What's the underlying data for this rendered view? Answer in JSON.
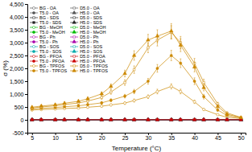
{
  "chart_data": {
    "type": "line",
    "x": [
      5,
      7,
      10,
      12,
      15,
      17,
      20,
      22,
      25,
      27,
      30,
      32,
      35,
      37,
      40,
      42,
      45,
      47,
      50
    ],
    "xlabel": "Temperature (°C)",
    "ylabel": "σ (%)",
    "xlim": [
      4,
      51
    ],
    "ylim": [
      -500,
      4500
    ],
    "xticks": [
      5,
      10,
      15,
      20,
      25,
      30,
      35,
      40,
      45,
      50
    ],
    "yticks": [
      -500,
      0,
      500,
      {
        "value": 1000,
        "label": "1,000"
      },
      {
        "value": 1500,
        "label": "1,500"
      },
      {
        "value": 2000,
        "label": "2,000"
      },
      {
        "value": 2500,
        "label": "2,500"
      },
      {
        "value": 3000,
        "label": "3,000"
      },
      {
        "value": 3500,
        "label": "3,500"
      },
      {
        "value": 4000,
        "label": "4,000"
      },
      {
        "value": 4500,
        "label": "4,500"
      }
    ],
    "legend": "upper left",
    "series": [
      {
        "name": "BG - OA",
        "color": "#555555",
        "marker": "circle-open",
        "values": [
          5,
          5,
          5,
          5,
          5,
          5,
          5,
          5,
          5,
          5,
          5,
          5,
          5,
          5,
          5,
          5,
          5,
          5,
          5
        ],
        "errors": [
          3,
          3,
          3,
          3,
          3,
          3,
          3,
          3,
          3,
          3,
          3,
          3,
          3,
          3,
          3,
          3,
          3,
          3,
          3
        ]
      },
      {
        "name": "T5.0 - OA",
        "color": "#555555",
        "marker": "circle",
        "values": [
          5,
          5,
          5,
          5,
          5,
          5,
          5,
          5,
          5,
          5,
          5,
          5,
          5,
          5,
          5,
          5,
          5,
          5,
          5
        ],
        "errors": [
          3,
          3,
          3,
          3,
          3,
          3,
          3,
          3,
          3,
          3,
          3,
          3,
          3,
          3,
          3,
          3,
          3,
          3,
          3
        ]
      },
      {
        "name": "BG - SDS",
        "color": "#222222",
        "marker": "square-open",
        "values": [
          5,
          5,
          5,
          5,
          5,
          5,
          5,
          5,
          5,
          5,
          5,
          5,
          5,
          5,
          5,
          5,
          5,
          5,
          5
        ],
        "errors": [
          3,
          3,
          3,
          3,
          3,
          3,
          3,
          3,
          3,
          3,
          3,
          3,
          3,
          3,
          3,
          3,
          3,
          3,
          3
        ]
      },
      {
        "name": "T5.0 - SDS",
        "color": "#222222",
        "marker": "square",
        "values": [
          5,
          5,
          5,
          5,
          5,
          5,
          5,
          5,
          5,
          5,
          5,
          5,
          5,
          5,
          5,
          5,
          5,
          5,
          5
        ],
        "errors": [
          3,
          3,
          3,
          3,
          3,
          3,
          3,
          3,
          3,
          3,
          3,
          3,
          3,
          3,
          3,
          3,
          3,
          3,
          3
        ]
      },
      {
        "name": "BG - MeOH",
        "color": "#00bb00",
        "marker": "circle-open",
        "values": [
          5,
          5,
          5,
          5,
          5,
          5,
          5,
          5,
          5,
          5,
          5,
          5,
          5,
          5,
          5,
          5,
          5,
          5,
          5
        ],
        "errors": [
          3,
          3,
          3,
          3,
          3,
          3,
          3,
          3,
          3,
          3,
          3,
          3,
          3,
          3,
          3,
          3,
          3,
          3,
          3
        ]
      },
      {
        "name": "T5.0 - MeOH",
        "color": "#00bb00",
        "marker": "circle",
        "values": [
          5,
          5,
          5,
          5,
          5,
          5,
          5,
          5,
          5,
          5,
          5,
          5,
          5,
          5,
          5,
          5,
          5,
          5,
          5
        ],
        "errors": [
          3,
          3,
          3,
          3,
          3,
          3,
          3,
          3,
          3,
          3,
          3,
          3,
          3,
          3,
          3,
          3,
          3,
          3,
          3
        ]
      },
      {
        "name": "BG - Ph",
        "color": "#aa00aa",
        "marker": "circle-open",
        "values": [
          5,
          5,
          5,
          5,
          5,
          5,
          5,
          5,
          5,
          5,
          5,
          5,
          5,
          5,
          5,
          5,
          5,
          5,
          5
        ],
        "errors": [
          3,
          3,
          3,
          3,
          3,
          3,
          3,
          3,
          3,
          3,
          3,
          3,
          3,
          3,
          3,
          3,
          3,
          3,
          3
        ]
      },
      {
        "name": "T5.0 - Ph",
        "color": "#aa00aa",
        "marker": "circle",
        "values": [
          5,
          5,
          5,
          5,
          5,
          5,
          5,
          5,
          5,
          5,
          5,
          5,
          5,
          5,
          5,
          5,
          5,
          5,
          5
        ],
        "errors": [
          3,
          3,
          3,
          3,
          3,
          3,
          3,
          3,
          3,
          3,
          3,
          3,
          3,
          3,
          3,
          3,
          3,
          3,
          3
        ]
      },
      {
        "name": "BG - SOS",
        "color": "#00aaaa",
        "marker": "circle-open",
        "values": [
          5,
          5,
          5,
          5,
          5,
          5,
          5,
          5,
          5,
          5,
          5,
          5,
          5,
          5,
          5,
          5,
          5,
          5,
          5
        ],
        "errors": [
          3,
          3,
          3,
          3,
          3,
          3,
          3,
          3,
          3,
          3,
          3,
          3,
          3,
          3,
          3,
          3,
          3,
          3,
          3
        ]
      },
      {
        "name": "T5.0 - SOS",
        "color": "#00aaaa",
        "marker": "circle",
        "values": [
          5,
          5,
          5,
          5,
          5,
          5,
          5,
          5,
          5,
          5,
          5,
          5,
          5,
          5,
          5,
          5,
          5,
          5,
          5
        ],
        "errors": [
          3,
          3,
          3,
          3,
          3,
          3,
          3,
          3,
          3,
          3,
          3,
          3,
          3,
          3,
          3,
          3,
          3,
          3,
          3
        ]
      },
      {
        "name": "BG - PFOA",
        "color": "#cc0000",
        "marker": "circle-open",
        "values": [
          5,
          5,
          5,
          5,
          5,
          5,
          5,
          5,
          5,
          5,
          5,
          5,
          5,
          5,
          5,
          5,
          5,
          5,
          5
        ],
        "errors": [
          3,
          3,
          3,
          3,
          3,
          3,
          3,
          3,
          3,
          3,
          3,
          3,
          3,
          3,
          3,
          3,
          3,
          3,
          3
        ]
      },
      {
        "name": "T5.0 - PFOA",
        "color": "#cc0000",
        "marker": "circle",
        "values": [
          5,
          5,
          5,
          5,
          5,
          5,
          5,
          5,
          5,
          5,
          5,
          5,
          5,
          5,
          5,
          5,
          5,
          5,
          5
        ],
        "errors": [
          3,
          3,
          3,
          3,
          3,
          3,
          3,
          3,
          3,
          3,
          3,
          3,
          3,
          3,
          3,
          3,
          3,
          3,
          3
        ]
      },
      {
        "name": "BG - TPFOS",
        "color": "#cc8800",
        "marker": "circle-open",
        "values": [
          380,
          400,
          420,
          440,
          460,
          490,
          530,
          580,
          650,
          750,
          900,
          1100,
          1300,
          1100,
          700,
          400,
          200,
          100,
          50
        ],
        "errors": [
          25,
          25,
          25,
          25,
          25,
          30,
          35,
          40,
          50,
          60,
          70,
          90,
          100,
          90,
          65,
          40,
          25,
          20,
          15
        ]
      },
      {
        "name": "T5.0 - TPFOS",
        "color": "#cc8800",
        "marker": "circle",
        "values": [
          420,
          445,
          475,
          510,
          545,
          590,
          660,
          760,
          920,
          1100,
          1500,
          2000,
          2500,
          2200,
          1500,
          900,
          380,
          170,
          70
        ],
        "errors": [
          30,
          30,
          30,
          35,
          35,
          40,
          50,
          55,
          70,
          85,
          110,
          150,
          200,
          170,
          130,
          90,
          45,
          30,
          20
        ]
      },
      {
        "name": "D5.0 - OA",
        "color": "#555555",
        "marker": "square-open",
        "values": [
          5,
          5,
          5,
          5,
          5,
          5,
          5,
          5,
          5,
          5,
          5,
          5,
          5,
          5,
          5,
          5,
          5,
          5,
          5
        ],
        "errors": [
          3,
          3,
          3,
          3,
          3,
          3,
          3,
          3,
          3,
          3,
          3,
          3,
          3,
          3,
          3,
          3,
          3,
          3,
          3
        ]
      },
      {
        "name": "H5.0 - OA",
        "color": "#555555",
        "marker": "triangle",
        "values": [
          5,
          5,
          5,
          5,
          5,
          5,
          5,
          5,
          5,
          5,
          5,
          5,
          5,
          5,
          5,
          5,
          5,
          5,
          5
        ],
        "errors": [
          3,
          3,
          3,
          3,
          3,
          3,
          3,
          3,
          3,
          3,
          3,
          3,
          3,
          3,
          3,
          3,
          3,
          3,
          3
        ]
      },
      {
        "name": "D5.0 - SDS",
        "color": "#222222",
        "marker": "square-open",
        "values": [
          5,
          5,
          5,
          5,
          5,
          5,
          5,
          5,
          5,
          5,
          5,
          5,
          5,
          5,
          5,
          5,
          5,
          5,
          5
        ],
        "errors": [
          3,
          3,
          3,
          3,
          3,
          3,
          3,
          3,
          3,
          3,
          3,
          3,
          3,
          3,
          3,
          3,
          3,
          3,
          3
        ]
      },
      {
        "name": "H5.0 - SDS",
        "color": "#222222",
        "marker": "triangle",
        "values": [
          5,
          5,
          5,
          5,
          5,
          5,
          5,
          5,
          5,
          5,
          5,
          5,
          5,
          5,
          5,
          5,
          5,
          5,
          5
        ],
        "errors": [
          3,
          3,
          3,
          3,
          3,
          3,
          3,
          3,
          3,
          3,
          3,
          3,
          3,
          3,
          3,
          3,
          3,
          3,
          3
        ]
      },
      {
        "name": "D5.0 - MeOH",
        "color": "#00bb00",
        "marker": "square-open",
        "values": [
          5,
          5,
          5,
          5,
          5,
          5,
          5,
          5,
          5,
          5,
          5,
          5,
          5,
          5,
          5,
          5,
          5,
          5,
          5
        ],
        "errors": [
          3,
          3,
          3,
          3,
          3,
          3,
          3,
          3,
          3,
          3,
          3,
          3,
          3,
          3,
          3,
          3,
          3,
          3,
          3
        ]
      },
      {
        "name": "H5.0 - MeOH",
        "color": "#00bb00",
        "marker": "triangle",
        "values": [
          5,
          5,
          5,
          5,
          5,
          5,
          5,
          5,
          5,
          5,
          5,
          5,
          5,
          5,
          5,
          5,
          5,
          5,
          5
        ],
        "errors": [
          3,
          3,
          3,
          3,
          3,
          3,
          3,
          3,
          3,
          3,
          3,
          3,
          3,
          3,
          3,
          3,
          3,
          3,
          3
        ]
      },
      {
        "name": "D5.0 - Ph",
        "color": "#aa00aa",
        "marker": "square-open",
        "values": [
          5,
          5,
          5,
          5,
          5,
          5,
          5,
          5,
          5,
          5,
          5,
          5,
          5,
          5,
          5,
          5,
          5,
          5,
          5
        ],
        "errors": [
          3,
          3,
          3,
          3,
          3,
          3,
          3,
          3,
          3,
          3,
          3,
          3,
          3,
          3,
          3,
          3,
          3,
          3,
          3
        ]
      },
      {
        "name": "H5.0 - Ph",
        "color": "#aa00aa",
        "marker": "triangle",
        "values": [
          5,
          5,
          5,
          5,
          5,
          5,
          5,
          5,
          5,
          5,
          5,
          5,
          5,
          5,
          5,
          5,
          5,
          5,
          5
        ],
        "errors": [
          3,
          3,
          3,
          3,
          3,
          3,
          3,
          3,
          3,
          3,
          3,
          3,
          3,
          3,
          3,
          3,
          3,
          3,
          3
        ]
      },
      {
        "name": "D5.0 - SOS",
        "color": "#00aaaa",
        "marker": "square-open",
        "values": [
          5,
          5,
          5,
          5,
          5,
          5,
          5,
          5,
          5,
          5,
          5,
          5,
          5,
          5,
          5,
          5,
          5,
          5,
          5
        ],
        "errors": [
          3,
          3,
          3,
          3,
          3,
          3,
          3,
          3,
          3,
          3,
          3,
          3,
          3,
          3,
          3,
          3,
          3,
          3,
          3
        ]
      },
      {
        "name": "H5.0 - SOS",
        "color": "#00aaaa",
        "marker": "triangle",
        "values": [
          5,
          5,
          5,
          5,
          5,
          5,
          5,
          5,
          5,
          5,
          5,
          5,
          5,
          5,
          5,
          5,
          5,
          5,
          5
        ],
        "errors": [
          3,
          3,
          3,
          3,
          3,
          3,
          3,
          3,
          3,
          3,
          3,
          3,
          3,
          3,
          3,
          3,
          3,
          3,
          3
        ]
      },
      {
        "name": "D5.0 - PFOA",
        "color": "#cc0000",
        "marker": "square-open",
        "values": [
          5,
          5,
          5,
          5,
          5,
          5,
          5,
          5,
          5,
          5,
          5,
          5,
          5,
          5,
          5,
          5,
          5,
          5,
          5
        ],
        "errors": [
          3,
          3,
          3,
          3,
          3,
          3,
          3,
          3,
          3,
          3,
          3,
          3,
          3,
          3,
          3,
          3,
          3,
          3,
          3
        ]
      },
      {
        "name": "H5.0 - PFOA",
        "color": "#cc0000",
        "marker": "triangle",
        "values": [
          5,
          5,
          5,
          5,
          5,
          5,
          5,
          5,
          5,
          5,
          5,
          5,
          5,
          5,
          5,
          5,
          5,
          5,
          5
        ],
        "errors": [
          3,
          3,
          3,
          3,
          3,
          3,
          3,
          3,
          3,
          3,
          3,
          3,
          3,
          3,
          3,
          3,
          3,
          3,
          3
        ]
      },
      {
        "name": "D5.0 - TPFOS",
        "color": "#cc8800",
        "marker": "square-open",
        "values": [
          460,
          500,
          545,
          595,
          655,
          730,
          870,
          1080,
          1450,
          1950,
          2800,
          3100,
          3400,
          3000,
          2200,
          1450,
          620,
          270,
          95
        ],
        "errors": [
          35,
          38,
          42,
          46,
          52,
          58,
          70,
          85,
          110,
          145,
          190,
          230,
          260,
          240,
          185,
          130,
          65,
          38,
          24
        ]
      },
      {
        "name": "H5.0 - TPFOS",
        "color": "#cc8800",
        "marker": "triangle",
        "values": [
          490,
          535,
          585,
          645,
          720,
          820,
          1010,
          1300,
          1800,
          2500,
          3100,
          3250,
          3450,
          2900,
          2050,
          1250,
          520,
          220,
          85
        ],
        "errors": [
          42,
          44,
          48,
          52,
          58,
          66,
          80,
          96,
          130,
          185,
          220,
          250,
          290,
          250,
          185,
          125,
          62,
          36,
          26
        ]
      }
    ]
  }
}
